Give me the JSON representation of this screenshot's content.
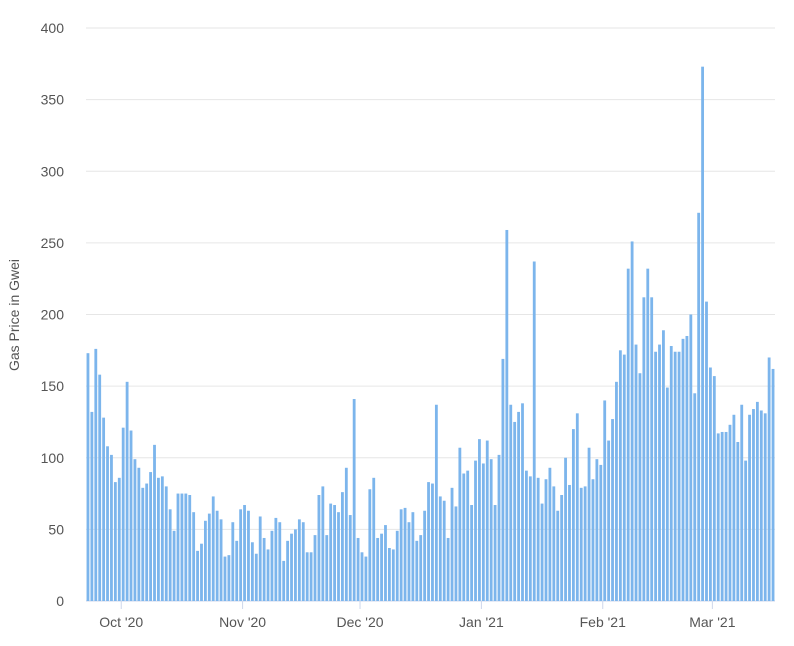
{
  "chart_data": {
    "type": "bar",
    "title": "",
    "xlabel": "",
    "ylabel": "Gas Price in Gwei",
    "ylim": [
      0,
      400
    ],
    "yticks": [
      0,
      50,
      100,
      150,
      200,
      250,
      300,
      350,
      400
    ],
    "grid": "horizontal",
    "legend": "none",
    "bar_color": "#7cb5ec",
    "grid_color": "#e6e6e6",
    "x_start_date": "2020-09-22",
    "x_end_date": "2021-03-14",
    "x_ticks": [
      {
        "label": "Oct '20",
        "date": "2020-10-01"
      },
      {
        "label": "Nov '20",
        "date": "2020-11-01"
      },
      {
        "label": "Dec '20",
        "date": "2020-12-01"
      },
      {
        "label": "Jan '21",
        "date": "2021-01-01"
      },
      {
        "label": "Feb '21",
        "date": "2021-02-01"
      },
      {
        "label": "Mar '21",
        "date": "2021-03-01"
      }
    ],
    "values": [
      173,
      132,
      176,
      158,
      128,
      108,
      102,
      83,
      86,
      121,
      153,
      119,
      99,
      93,
      79,
      82,
      90,
      109,
      86,
      87,
      80,
      64,
      49,
      75,
      75,
      75,
      74,
      62,
      35,
      40,
      56,
      61,
      73,
      63,
      57,
      31,
      32,
      55,
      42,
      64,
      67,
      63,
      41,
      33,
      59,
      44,
      36,
      49,
      58,
      55,
      28,
      42,
      47,
      50,
      57,
      55,
      34,
      34,
      46,
      74,
      80,
      46,
      68,
      67,
      62,
      76,
      93,
      60,
      141,
      44,
      34,
      31,
      78,
      86,
      44,
      47,
      53,
      37,
      36,
      49,
      64,
      65,
      55,
      62,
      42,
      46,
      63,
      83,
      82,
      137,
      73,
      70,
      44,
      79,
      66,
      107,
      89,
      91,
      67,
      98,
      113,
      96,
      112,
      99,
      67,
      102,
      169,
      259,
      137,
      125,
      132,
      138,
      91,
      87,
      237,
      86,
      68,
      85,
      93,
      80,
      63,
      74,
      100,
      81,
      120,
      131,
      79,
      80,
      107,
      85,
      99,
      95,
      140,
      112,
      127,
      153,
      175,
      172,
      232,
      251,
      179,
      159,
      212,
      232,
      212,
      174,
      179,
      189,
      149,
      178,
      174,
      174,
      183,
      185,
      200,
      145,
      271,
      373,
      209,
      163,
      157,
      117,
      118,
      118,
      123,
      130,
      111,
      137,
      98,
      130,
      134,
      139,
      133,
      131,
      170,
      162
    ]
  }
}
